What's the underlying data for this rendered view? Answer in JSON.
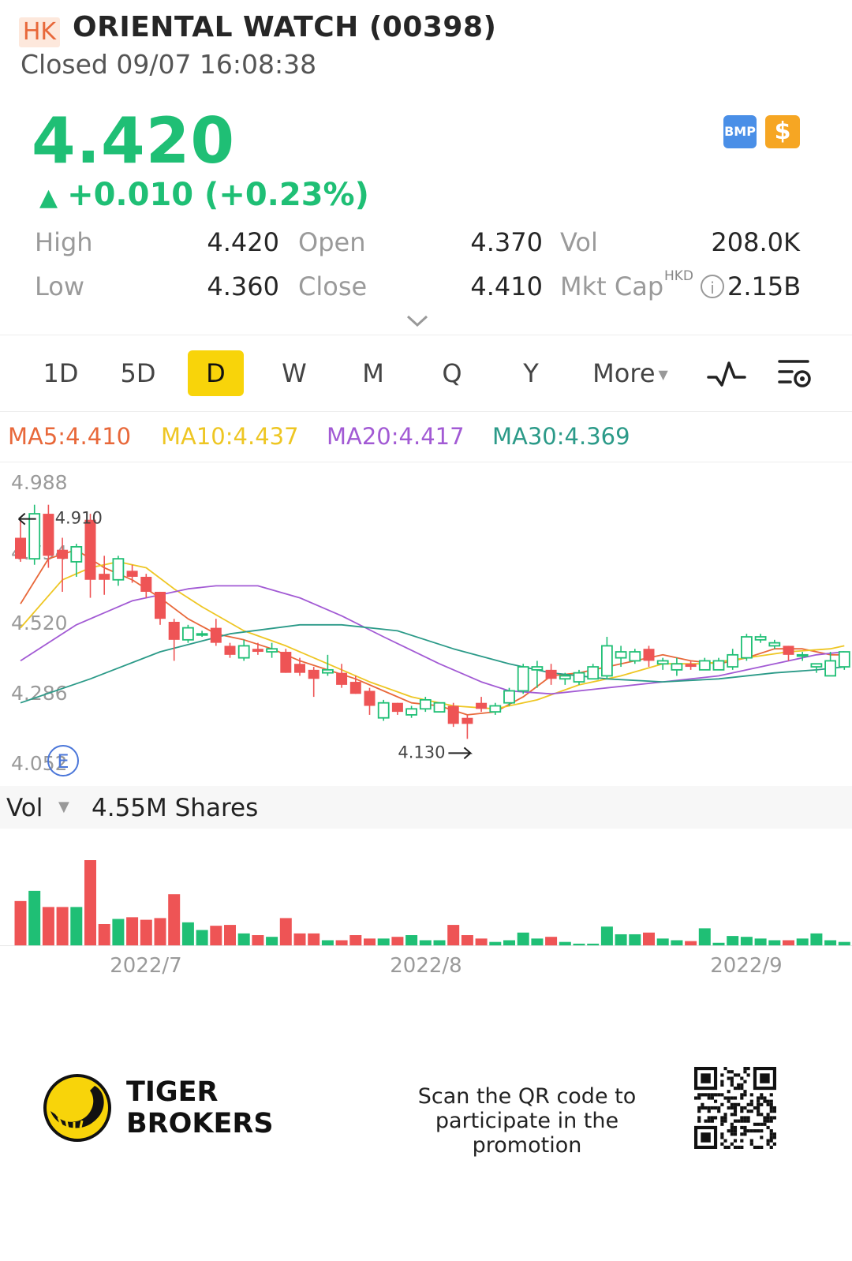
{
  "header": {
    "market": "HK",
    "title": "ORIENTAL WATCH (00398)",
    "status": "Closed 09/07 16:08:38"
  },
  "quote": {
    "price": "4.420",
    "change": "+0.010 (+0.23%)",
    "badges": {
      "bmp": "BMP",
      "dollar": "$"
    },
    "stats": {
      "high_label": "High",
      "high": "4.420",
      "low_label": "Low",
      "low": "4.360",
      "open_label": "Open",
      "open": "4.370",
      "close_label": "Close",
      "close": "4.410",
      "vol_label": "Vol",
      "vol": "208.0K",
      "mktcap_label": "Mkt Cap",
      "mktcap_currency": "HKD",
      "mktcap": "2.15B"
    }
  },
  "tabs": {
    "items": [
      "1D",
      "5D",
      "D",
      "W",
      "M",
      "Q",
      "Y"
    ],
    "more": "More",
    "active": "D"
  },
  "ma_legend": {
    "ma5": "MA5:4.410",
    "ma10": "MA10:4.437",
    "ma20": "MA20:4.417",
    "ma30": "MA30:4.369"
  },
  "colors": {
    "up": "#1fbf75",
    "down": "#ee5455",
    "ma5": "#e8683a",
    "ma10": "#eec623",
    "ma20": "#a25ad4",
    "ma30": "#2b9a88",
    "tab_active": "#f8d40a"
  },
  "icons": {
    "expand": "chevron-down-icon",
    "indicator": "indicator-wave-icon",
    "settings": "chart-settings-icon",
    "event": "event-marker-icon",
    "logo": "tiger-logo-icon"
  },
  "chart_data": {
    "type": "candlestick",
    "ylim": [
      4.052,
      4.988
    ],
    "y_ticks": [
      "4.988",
      "4.754",
      "4.520",
      "4.286",
      "4.052"
    ],
    "max_label": "4.910",
    "min_label": "4.130",
    "event_marker": "E",
    "x_ticks": [
      "2022/7",
      "2022/8",
      "2022/9"
    ],
    "candles": [
      {
        "o": 4.8,
        "h": 4.86,
        "l": 4.72,
        "c": 4.73
      },
      {
        "o": 4.73,
        "h": 4.91,
        "l": 4.71,
        "c": 4.88
      },
      {
        "o": 4.88,
        "h": 4.91,
        "l": 4.7,
        "c": 4.74
      },
      {
        "o": 4.76,
        "h": 4.8,
        "l": 4.62,
        "c": 4.73
      },
      {
        "o": 4.72,
        "h": 4.78,
        "l": 4.67,
        "c": 4.77
      },
      {
        "o": 4.86,
        "h": 4.88,
        "l": 4.6,
        "c": 4.66
      },
      {
        "o": 4.68,
        "h": 4.74,
        "l": 4.61,
        "c": 4.66
      },
      {
        "o": 4.66,
        "h": 4.74,
        "l": 4.64,
        "c": 4.73
      },
      {
        "o": 4.69,
        "h": 4.71,
        "l": 4.65,
        "c": 4.67
      },
      {
        "o": 4.67,
        "h": 4.68,
        "l": 4.6,
        "c": 4.62
      },
      {
        "o": 4.62,
        "h": 4.62,
        "l": 4.51,
        "c": 4.53
      },
      {
        "o": 4.52,
        "h": 4.53,
        "l": 4.39,
        "c": 4.46
      },
      {
        "o": 4.46,
        "h": 4.51,
        "l": 4.45,
        "c": 4.5
      },
      {
        "o": 4.48,
        "h": 4.49,
        "l": 4.47,
        "c": 4.48
      },
      {
        "o": 4.5,
        "h": 4.53,
        "l": 4.44,
        "c": 4.45
      },
      {
        "o": 4.44,
        "h": 4.45,
        "l": 4.4,
        "c": 4.41
      },
      {
        "o": 4.4,
        "h": 4.46,
        "l": 4.39,
        "c": 4.44
      },
      {
        "o": 4.43,
        "h": 4.45,
        "l": 4.41,
        "c": 4.42
      },
      {
        "o": 4.42,
        "h": 4.45,
        "l": 4.4,
        "c": 4.43
      },
      {
        "o": 4.42,
        "h": 4.43,
        "l": 4.35,
        "c": 4.35
      },
      {
        "o": 4.38,
        "h": 4.4,
        "l": 4.34,
        "c": 4.35
      },
      {
        "o": 4.36,
        "h": 4.37,
        "l": 4.27,
        "c": 4.33
      },
      {
        "o": 4.35,
        "h": 4.41,
        "l": 4.34,
        "c": 4.36
      },
      {
        "o": 4.35,
        "h": 4.38,
        "l": 4.3,
        "c": 4.31
      },
      {
        "o": 4.32,
        "h": 4.34,
        "l": 4.28,
        "c": 4.28
      },
      {
        "o": 4.29,
        "h": 4.3,
        "l": 4.21,
        "c": 4.24
      },
      {
        "o": 4.2,
        "h": 4.26,
        "l": 4.19,
        "c": 4.25
      },
      {
        "o": 4.25,
        "h": 4.25,
        "l": 4.21,
        "c": 4.22
      },
      {
        "o": 4.21,
        "h": 4.24,
        "l": 4.2,
        "c": 4.23
      },
      {
        "o": 4.23,
        "h": 4.27,
        "l": 4.22,
        "c": 4.26
      },
      {
        "o": 4.22,
        "h": 4.25,
        "l": 4.22,
        "c": 4.25
      },
      {
        "o": 4.24,
        "h": 4.25,
        "l": 4.17,
        "c": 4.18
      },
      {
        "o": 4.2,
        "h": 4.21,
        "l": 4.13,
        "c": 4.18
      },
      {
        "o": 4.25,
        "h": 4.27,
        "l": 4.22,
        "c": 4.23
      },
      {
        "o": 4.22,
        "h": 4.25,
        "l": 4.21,
        "c": 4.24
      },
      {
        "o": 4.25,
        "h": 4.3,
        "l": 4.24,
        "c": 4.29
      },
      {
        "o": 4.29,
        "h": 4.38,
        "l": 4.28,
        "c": 4.37
      },
      {
        "o": 4.36,
        "h": 4.39,
        "l": 4.3,
        "c": 4.37
      },
      {
        "o": 4.36,
        "h": 4.38,
        "l": 4.31,
        "c": 4.33
      },
      {
        "o": 4.33,
        "h": 4.35,
        "l": 4.31,
        "c": 4.34
      },
      {
        "o": 4.32,
        "h": 4.36,
        "l": 4.31,
        "c": 4.35
      },
      {
        "o": 4.33,
        "h": 4.38,
        "l": 4.33,
        "c": 4.37
      },
      {
        "o": 4.34,
        "h": 4.47,
        "l": 4.33,
        "c": 4.44
      },
      {
        "o": 4.4,
        "h": 4.44,
        "l": 4.37,
        "c": 4.42
      },
      {
        "o": 4.39,
        "h": 4.43,
        "l": 4.38,
        "c": 4.42
      },
      {
        "o": 4.43,
        "h": 4.44,
        "l": 4.37,
        "c": 4.39
      },
      {
        "o": 4.38,
        "h": 4.4,
        "l": 4.36,
        "c": 4.39
      },
      {
        "o": 4.36,
        "h": 4.4,
        "l": 4.34,
        "c": 4.38
      },
      {
        "o": 4.38,
        "h": 4.39,
        "l": 4.36,
        "c": 4.37
      },
      {
        "o": 4.36,
        "h": 4.4,
        "l": 4.36,
        "c": 4.39
      },
      {
        "o": 4.36,
        "h": 4.4,
        "l": 4.36,
        "c": 4.39
      },
      {
        "o": 4.37,
        "h": 4.43,
        "l": 4.36,
        "c": 4.41
      },
      {
        "o": 4.4,
        "h": 4.48,
        "l": 4.39,
        "c": 4.47
      },
      {
        "o": 4.46,
        "h": 4.48,
        "l": 4.45,
        "c": 4.47
      },
      {
        "o": 4.44,
        "h": 4.46,
        "l": 4.43,
        "c": 4.45
      },
      {
        "o": 4.44,
        "h": 4.44,
        "l": 4.39,
        "c": 4.41
      },
      {
        "o": 4.41,
        "h": 4.42,
        "l": 4.39,
        "c": 4.41
      },
      {
        "o": 4.37,
        "h": 4.38,
        "l": 4.35,
        "c": 4.38
      },
      {
        "o": 4.34,
        "h": 4.42,
        "l": 4.34,
        "c": 4.39
      },
      {
        "o": 4.37,
        "h": 4.42,
        "l": 4.36,
        "c": 4.42
      }
    ],
    "ma_series": [
      {
        "name": "MA5",
        "key": "ma5",
        "values": [
          [
            0,
            4.58
          ],
          [
            2,
            4.73
          ],
          [
            4,
            4.76
          ],
          [
            6,
            4.7
          ],
          [
            8,
            4.66
          ],
          [
            10,
            4.6
          ],
          [
            12,
            4.53
          ],
          [
            14,
            4.48
          ],
          [
            16,
            4.46
          ],
          [
            18,
            4.43
          ],
          [
            20,
            4.39
          ],
          [
            22,
            4.36
          ],
          [
            24,
            4.33
          ],
          [
            26,
            4.29
          ],
          [
            28,
            4.25
          ],
          [
            30,
            4.24
          ],
          [
            32,
            4.21
          ],
          [
            34,
            4.22
          ],
          [
            36,
            4.27
          ],
          [
            38,
            4.34
          ],
          [
            40,
            4.35
          ],
          [
            42,
            4.37
          ],
          [
            44,
            4.39
          ],
          [
            46,
            4.41
          ],
          [
            48,
            4.39
          ],
          [
            50,
            4.38
          ],
          [
            52,
            4.4
          ],
          [
            54,
            4.43
          ],
          [
            56,
            4.43
          ],
          [
            58,
            4.41
          ],
          [
            59,
            4.41
          ]
        ]
      },
      {
        "name": "MA10",
        "key": "ma10",
        "values": [
          [
            0,
            4.5
          ],
          [
            3,
            4.66
          ],
          [
            5,
            4.7
          ],
          [
            7,
            4.72
          ],
          [
            9,
            4.7
          ],
          [
            11,
            4.63
          ],
          [
            13,
            4.57
          ],
          [
            16,
            4.49
          ],
          [
            19,
            4.44
          ],
          [
            22,
            4.38
          ],
          [
            25,
            4.32
          ],
          [
            28,
            4.27
          ],
          [
            31,
            4.24
          ],
          [
            34,
            4.23
          ],
          [
            37,
            4.26
          ],
          [
            40,
            4.31
          ],
          [
            43,
            4.34
          ],
          [
            46,
            4.38
          ],
          [
            49,
            4.38
          ],
          [
            52,
            4.4
          ],
          [
            55,
            4.42
          ],
          [
            58,
            4.43
          ],
          [
            59,
            4.44
          ]
        ]
      },
      {
        "name": "MA20",
        "key": "ma20",
        "values": [
          [
            0,
            4.39
          ],
          [
            4,
            4.51
          ],
          [
            8,
            4.59
          ],
          [
            12,
            4.63
          ],
          [
            14,
            4.64
          ],
          [
            17,
            4.64
          ],
          [
            20,
            4.6
          ],
          [
            23,
            4.54
          ],
          [
            26,
            4.47
          ],
          [
            30,
            4.38
          ],
          [
            33,
            4.32
          ],
          [
            35,
            4.29
          ],
          [
            38,
            4.28
          ],
          [
            42,
            4.3
          ],
          [
            46,
            4.32
          ],
          [
            50,
            4.34
          ],
          [
            54,
            4.38
          ],
          [
            57,
            4.41
          ],
          [
            59,
            4.42
          ]
        ]
      },
      {
        "name": "MA30",
        "key": "ma30",
        "values": [
          [
            0,
            4.25
          ],
          [
            5,
            4.33
          ],
          [
            10,
            4.42
          ],
          [
            15,
            4.48
          ],
          [
            20,
            4.51
          ],
          [
            23,
            4.51
          ],
          [
            27,
            4.49
          ],
          [
            31,
            4.43
          ],
          [
            35,
            4.38
          ],
          [
            38,
            4.35
          ],
          [
            42,
            4.33
          ],
          [
            46,
            4.32
          ],
          [
            50,
            4.33
          ],
          [
            54,
            4.35
          ],
          [
            57,
            4.36
          ],
          [
            59,
            4.37
          ]
        ]
      }
    ],
    "volume_label": "Vol",
    "volume_value": "4.55M Shares",
    "volume": [
      0.52,
      0.64,
      0.45,
      0.45,
      0.45,
      1.0,
      0.25,
      0.31,
      0.33,
      0.3,
      0.32,
      0.6,
      0.27,
      0.18,
      0.23,
      0.24,
      0.14,
      0.12,
      0.1,
      0.32,
      0.14,
      0.14,
      0.06,
      0.06,
      0.12,
      0.08,
      0.08,
      0.1,
      0.12,
      0.06,
      0.06,
      0.24,
      0.12,
      0.08,
      0.04,
      0.06,
      0.15,
      0.08,
      0.1,
      0.04,
      0.02,
      0.02,
      0.22,
      0.13,
      0.13,
      0.15,
      0.08,
      0.06,
      0.05,
      0.2,
      0.03,
      0.11,
      0.1,
      0.08,
      0.06,
      0.06,
      0.08,
      0.14,
      0.06,
      0.04
    ]
  },
  "footer": {
    "brand_line1": "TIGER",
    "brand_line2": "BROKERS",
    "promo_line1": "Scan the QR code to",
    "promo_line2": "participate in the promotion"
  }
}
